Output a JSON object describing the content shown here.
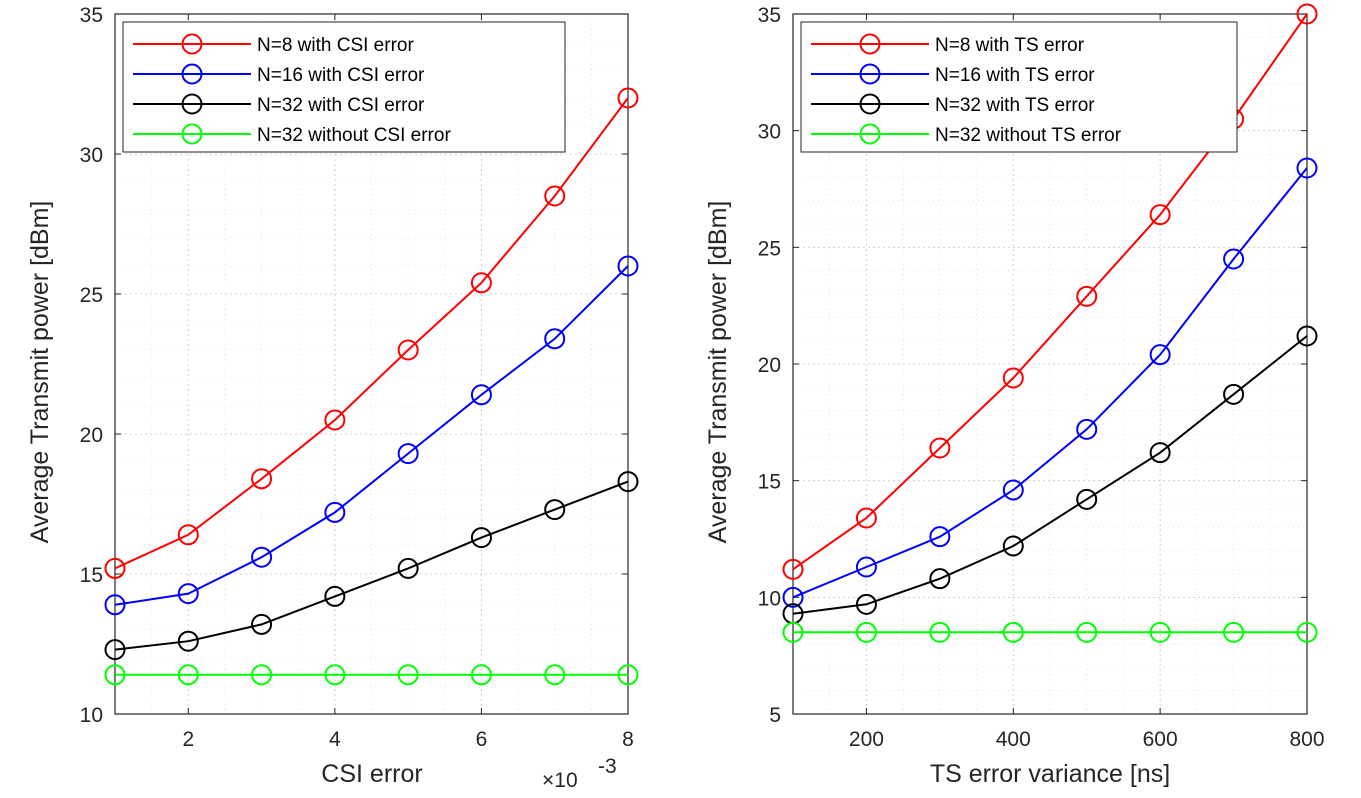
{
  "chart_data": [
    {
      "type": "line",
      "title": "",
      "xlabel": "CSI error",
      "ylabel": "Average Transmit power [dBm]",
      "x_exponent_label": "×10",
      "x_exponent_power": "-3",
      "xlim": [
        1,
        8
      ],
      "ylim": [
        10,
        35
      ],
      "xticks": [
        2,
        4,
        6,
        8
      ],
      "xtick_labels": [
        "2",
        "4",
        "6",
        "8"
      ],
      "yticks": [
        10,
        15,
        20,
        25,
        30,
        35
      ],
      "ytick_labels": [
        "10",
        "15",
        "20",
        "25",
        "30",
        "35"
      ],
      "grid": true,
      "legend_position": "top-left",
      "x": [
        1,
        2,
        3,
        4,
        5,
        6,
        7,
        8
      ],
      "series": [
        {
          "name": "N=8 with CSI error",
          "color": "#ff0000",
          "values": [
            15.2,
            16.4,
            18.4,
            20.5,
            23.0,
            25.4,
            28.5,
            32.0
          ]
        },
        {
          "name": "N=16 with CSI error",
          "color": "#0000ff",
          "values": [
            13.9,
            14.3,
            15.6,
            17.2,
            19.3,
            21.4,
            23.4,
            26.0
          ]
        },
        {
          "name": "N=32 with CSI error",
          "color": "#000000",
          "values": [
            12.3,
            12.6,
            13.2,
            14.2,
            15.2,
            16.3,
            17.3,
            18.3
          ]
        },
        {
          "name": "N=32 without CSI error",
          "color": "#00ff00",
          "values": [
            11.4,
            11.4,
            11.4,
            11.4,
            11.4,
            11.4,
            11.4,
            11.4
          ]
        }
      ]
    },
    {
      "type": "line",
      "title": "",
      "xlabel": "TS error variance [ns]",
      "ylabel": "Average Transmit power [dBm]",
      "xlim": [
        100,
        800
      ],
      "ylim": [
        5,
        35
      ],
      "xticks": [
        200,
        400,
        600,
        800
      ],
      "xtick_labels": [
        "200",
        "400",
        "600",
        "800"
      ],
      "yticks": [
        5,
        10,
        15,
        20,
        25,
        30,
        35
      ],
      "ytick_labels": [
        "5",
        "10",
        "15",
        "20",
        "25",
        "30",
        "35"
      ],
      "grid": true,
      "legend_position": "top-left",
      "x": [
        100,
        200,
        300,
        400,
        500,
        600,
        700,
        800
      ],
      "series": [
        {
          "name": "N=8 with TS error",
          "color": "#ff0000",
          "values": [
            11.2,
            13.4,
            16.4,
            19.4,
            22.9,
            26.4,
            30.5,
            35.0
          ]
        },
        {
          "name": "N=16 with TS error",
          "color": "#0000ff",
          "values": [
            10.0,
            11.3,
            12.6,
            14.6,
            17.2,
            20.4,
            24.5,
            28.4
          ]
        },
        {
          "name": "N=32 with TS error",
          "color": "#000000",
          "values": [
            9.3,
            9.7,
            10.8,
            12.2,
            14.2,
            16.2,
            18.7,
            21.2
          ]
        },
        {
          "name": "N=32 without TS error",
          "color": "#00ff00",
          "values": [
            8.5,
            8.5,
            8.5,
            8.5,
            8.5,
            8.5,
            8.5,
            8.5
          ]
        }
      ]
    }
  ]
}
